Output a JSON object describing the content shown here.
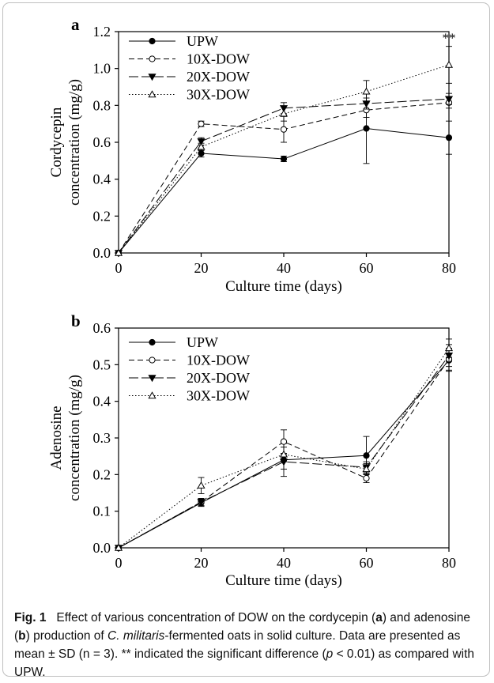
{
  "chart_data": [
    {
      "type": "line",
      "panel_label": "a",
      "ylabel_line1": "Cordycepin",
      "ylabel_line2": "concentration (mg/g)",
      "xlabel": "Culture time (days)",
      "xlim": [
        0,
        80
      ],
      "ylim": [
        0,
        1.2
      ],
      "xticks": [
        "0",
        "20",
        "40",
        "60",
        "80"
      ],
      "yticks": [
        "0.0",
        "0.2",
        "0.4",
        "0.6",
        "0.8",
        "1.0",
        "1.2"
      ],
      "legend_position": "top-left",
      "annotation": "**",
      "x": [
        0,
        20,
        40,
        60,
        80
      ],
      "series": [
        {
          "name": "UPW",
          "values": [
            0,
            0.54,
            0.51,
            0.675,
            0.625
          ],
          "errors": [
            0,
            0.02,
            0.015,
            0.19,
            0.09
          ]
        },
        {
          "name": "10X-DOW",
          "values": [
            0,
            0.7,
            0.67,
            0.775,
            0.815
          ],
          "errors": [
            0,
            0.015,
            0.07,
            0.04,
            0.03
          ]
        },
        {
          "name": "20X-DOW",
          "values": [
            0,
            0.605,
            0.785,
            0.81,
            0.835
          ],
          "errors": [
            0,
            0.02,
            0.03,
            0.03,
            0.03
          ]
        },
        {
          "name": "30X-DOW",
          "values": [
            0,
            0.575,
            0.755,
            0.875,
            1.02
          ],
          "errors": [
            0,
            0.02,
            0.04,
            0.06,
            0.1
          ]
        }
      ]
    },
    {
      "type": "line",
      "panel_label": "b",
      "ylabel_line1": "Adenosine",
      "ylabel_line2": "concentration (mg/g)",
      "xlabel": "Culture time (days)",
      "xlim": [
        0,
        80
      ],
      "ylim": [
        0,
        0.6
      ],
      "xticks": [
        "0",
        "20",
        "40",
        "60",
        "80"
      ],
      "yticks": [
        "0.0",
        "0.1",
        "0.2",
        "0.3",
        "0.4",
        "0.5",
        "0.6"
      ],
      "legend_position": "top-left",
      "x": [
        0,
        20,
        40,
        60,
        80
      ],
      "series": [
        {
          "name": "UPW",
          "values": [
            0,
            0.123,
            0.24,
            0.252,
            0.512
          ],
          "errors": [
            0,
            0.01,
            0.045,
            0.052,
            0.03
          ]
        },
        {
          "name": "10X-DOW",
          "values": [
            0,
            0.125,
            0.29,
            0.19,
            0.515
          ],
          "errors": [
            0,
            0.01,
            0.032,
            0.012,
            0.03
          ]
        },
        {
          "name": "20X-DOW",
          "values": [
            0,
            0.125,
            0.235,
            0.22,
            0.525
          ],
          "errors": [
            0,
            0.01,
            0.02,
            0.015,
            0.03
          ]
        },
        {
          "name": "30X-DOW",
          "values": [
            0,
            0.17,
            0.255,
            0.215,
            0.545
          ],
          "errors": [
            0,
            0.022,
            0.02,
            0.015,
            0.025
          ]
        }
      ]
    }
  ],
  "caption": {
    "fig_label": "Fig. 1",
    "part1": "Effect of various concentration of DOW on the cordycepin (",
    "a": "a",
    "part2": ") and adenosine (",
    "b": "b",
    "part3": ") production of ",
    "species": "C. militaris",
    "part4": "-fermented oats in solid culture. Data are presented as mean ± SD (n = 3). ** indicated the significant difference (",
    "p": "p",
    "part5": " < 0.01) as compared with UPW."
  }
}
